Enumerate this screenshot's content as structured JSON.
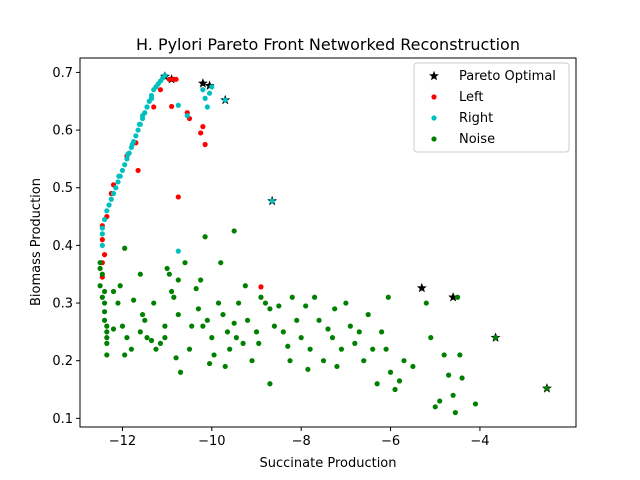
{
  "chart_data": {
    "type": "scatter",
    "title": "H. Pylori Pareto Front Networked Reconstruction",
    "xlabel": "Succinate Production",
    "ylabel": "Biomass Production",
    "xlim": [
      -12.95,
      -1.85
    ],
    "ylim": [
      0.085,
      0.725
    ],
    "xticks": [
      -12,
      -10,
      -8,
      -6,
      -4
    ],
    "xtick_labels": [
      "−12",
      "−10",
      "−8",
      "−6",
      "−4"
    ],
    "yticks": [
      0.1,
      0.2,
      0.3,
      0.4,
      0.5,
      0.6,
      0.7
    ],
    "ytick_labels": [
      "0.1",
      "0.2",
      "0.3",
      "0.4",
      "0.5",
      "0.6",
      "0.7"
    ],
    "grid": false,
    "legend_position": "top-right",
    "series": [
      {
        "name": "Pareto Optimal",
        "marker": "star",
        "color": "#000000",
        "points": [
          [
            -11.05,
            0.693
          ],
          [
            -10.9,
            0.688
          ],
          [
            -10.2,
            0.681
          ],
          [
            -10.05,
            0.677
          ],
          [
            -9.7,
            0.652
          ],
          [
            -8.65,
            0.477
          ],
          [
            -5.3,
            0.326
          ],
          [
            -4.6,
            0.31
          ],
          [
            -3.65,
            0.24
          ],
          [
            -2.5,
            0.152
          ]
        ]
      },
      {
        "name": "Left",
        "marker": "dot",
        "color": "#ff0000",
        "points": [
          [
            -10.95,
            0.688
          ],
          [
            -10.85,
            0.688
          ],
          [
            -10.8,
            0.688
          ],
          [
            -10.9,
            0.641
          ],
          [
            -10.55,
            0.63
          ],
          [
            -10.5,
            0.62
          ],
          [
            -10.2,
            0.606
          ],
          [
            -10.25,
            0.595
          ],
          [
            -10.15,
            0.575
          ],
          [
            -10.75,
            0.484
          ],
          [
            -11.65,
            0.53
          ],
          [
            -12.45,
            0.41
          ],
          [
            -12.45,
            0.434
          ],
          [
            -12.45,
            0.37
          ],
          [
            -12.45,
            0.345
          ],
          [
            -12.4,
            0.384
          ],
          [
            -8.9,
            0.328
          ],
          [
            -12.25,
            0.49
          ],
          [
            -12.2,
            0.505
          ],
          [
            -11.9,
            0.555
          ],
          [
            -11.7,
            0.578
          ],
          [
            -11.3,
            0.64
          ],
          [
            -11.15,
            0.67
          ],
          [
            -12.35,
            0.45
          ]
        ]
      },
      {
        "name": "Right",
        "marker": "dot",
        "color": "#00bfbf",
        "points": [
          [
            -12.45,
            0.42
          ],
          [
            -12.45,
            0.4
          ],
          [
            -12.45,
            0.43
          ],
          [
            -12.4,
            0.445
          ],
          [
            -12.35,
            0.46
          ],
          [
            -12.3,
            0.47
          ],
          [
            -12.25,
            0.48
          ],
          [
            -12.2,
            0.49
          ],
          [
            -12.15,
            0.5
          ],
          [
            -12.1,
            0.51
          ],
          [
            -12.05,
            0.52
          ],
          [
            -12.0,
            0.53
          ],
          [
            -11.95,
            0.54
          ],
          [
            -11.9,
            0.55
          ],
          [
            -11.85,
            0.56
          ],
          [
            -11.8,
            0.57
          ],
          [
            -11.75,
            0.58
          ],
          [
            -11.7,
            0.59
          ],
          [
            -11.65,
            0.6
          ],
          [
            -11.6,
            0.61
          ],
          [
            -11.55,
            0.62
          ],
          [
            -11.5,
            0.63
          ],
          [
            -11.45,
            0.64
          ],
          [
            -11.4,
            0.65
          ],
          [
            -11.35,
            0.66
          ],
          [
            -11.3,
            0.67
          ],
          [
            -11.25,
            0.675
          ],
          [
            -11.2,
            0.68
          ],
          [
            -11.15,
            0.685
          ],
          [
            -11.1,
            0.69
          ],
          [
            -11.05,
            0.695
          ],
          [
            -10.75,
            0.643
          ],
          [
            -10.55,
            0.625
          ],
          [
            -10.2,
            0.67
          ],
          [
            -10.15,
            0.655
          ],
          [
            -10.1,
            0.64
          ],
          [
            -10.05,
            0.664
          ],
          [
            -10.0,
            0.675
          ],
          [
            -9.7,
            0.652
          ],
          [
            -8.65,
            0.477
          ],
          [
            -10.75,
            0.39
          ],
          [
            -11.55,
            0.625
          ],
          [
            -11.45,
            0.64
          ],
          [
            -11.78,
            0.575
          ],
          [
            -11.88,
            0.558
          ],
          [
            -12.08,
            0.52
          ],
          [
            -11.62,
            0.61
          ],
          [
            -11.35,
            0.655
          ]
        ]
      },
      {
        "name": "Noise",
        "marker": "dot",
        "color": "#008000",
        "points": [
          [
            -12.5,
            0.37
          ],
          [
            -12.5,
            0.36
          ],
          [
            -12.5,
            0.33
          ],
          [
            -12.45,
            0.35
          ],
          [
            -12.45,
            0.31
          ],
          [
            -12.4,
            0.3
          ],
          [
            -12.4,
            0.285
          ],
          [
            -12.4,
            0.27
          ],
          [
            -12.35,
            0.26
          ],
          [
            -12.35,
            0.25
          ],
          [
            -12.35,
            0.24
          ],
          [
            -12.35,
            0.23
          ],
          [
            -12.35,
            0.21
          ],
          [
            -12.4,
            0.32
          ],
          [
            -12.2,
            0.32
          ],
          [
            -12.2,
            0.255
          ],
          [
            -12.1,
            0.3
          ],
          [
            -12.05,
            0.33
          ],
          [
            -12.0,
            0.26
          ],
          [
            -11.95,
            0.21
          ],
          [
            -11.9,
            0.24
          ],
          [
            -11.95,
            0.395
          ],
          [
            -11.75,
            0.305
          ],
          [
            -11.6,
            0.25
          ],
          [
            -11.55,
            0.28
          ],
          [
            -11.5,
            0.27
          ],
          [
            -11.45,
            0.24
          ],
          [
            -11.35,
            0.235
          ],
          [
            -11.3,
            0.3
          ],
          [
            -11.25,
            0.22
          ],
          [
            -11.15,
            0.23
          ],
          [
            -11.05,
            0.24
          ],
          [
            -11.05,
            0.26
          ],
          [
            -11.0,
            0.36
          ],
          [
            -10.95,
            0.35
          ],
          [
            -10.9,
            0.32
          ],
          [
            -10.85,
            0.31
          ],
          [
            -10.8,
            0.205
          ],
          [
            -10.75,
            0.34
          ],
          [
            -10.75,
            0.28
          ],
          [
            -10.6,
            0.37
          ],
          [
            -10.45,
            0.26
          ],
          [
            -10.35,
            0.325
          ],
          [
            -10.3,
            0.29
          ],
          [
            -10.25,
            0.34
          ],
          [
            -10.2,
            0.26
          ],
          [
            -10.15,
            0.415
          ],
          [
            -10.1,
            0.27
          ],
          [
            -10.05,
            0.195
          ],
          [
            -10.0,
            0.24
          ],
          [
            -9.95,
            0.21
          ],
          [
            -9.85,
            0.3
          ],
          [
            -9.8,
            0.37
          ],
          [
            -9.75,
            0.28
          ],
          [
            -9.65,
            0.25
          ],
          [
            -9.6,
            0.22
          ],
          [
            -9.5,
            0.265
          ],
          [
            -9.5,
            0.425
          ],
          [
            -9.45,
            0.24
          ],
          [
            -9.4,
            0.3
          ],
          [
            -9.3,
            0.23
          ],
          [
            -9.2,
            0.27
          ],
          [
            -9.1,
            0.2
          ],
          [
            -9.0,
            0.25
          ],
          [
            -8.95,
            0.23
          ],
          [
            -8.9,
            0.31
          ],
          [
            -8.8,
            0.3
          ],
          [
            -8.7,
            0.29
          ],
          [
            -8.6,
            0.26
          ],
          [
            -8.5,
            0.295
          ],
          [
            -8.4,
            0.25
          ],
          [
            -8.3,
            0.225
          ],
          [
            -8.25,
            0.2
          ],
          [
            -8.2,
            0.31
          ],
          [
            -8.1,
            0.27
          ],
          [
            -8.0,
            0.24
          ],
          [
            -7.9,
            0.295
          ],
          [
            -7.85,
            0.185
          ],
          [
            -7.8,
            0.22
          ],
          [
            -7.7,
            0.31
          ],
          [
            -7.6,
            0.27
          ],
          [
            -7.5,
            0.2
          ],
          [
            -7.4,
            0.255
          ],
          [
            -7.3,
            0.24
          ],
          [
            -7.2,
            0.19
          ],
          [
            -7.1,
            0.22
          ],
          [
            -7.0,
            0.3
          ],
          [
            -6.9,
            0.26
          ],
          [
            -6.8,
            0.23
          ],
          [
            -6.7,
            0.25
          ],
          [
            -6.6,
            0.2
          ],
          [
            -6.5,
            0.28
          ],
          [
            -6.4,
            0.22
          ],
          [
            -6.3,
            0.16
          ],
          [
            -6.2,
            0.25
          ],
          [
            -6.1,
            0.22
          ],
          [
            -6.0,
            0.18
          ],
          [
            -5.9,
            0.15
          ],
          [
            -5.8,
            0.165
          ],
          [
            -5.7,
            0.2
          ],
          [
            -5.2,
            0.3
          ],
          [
            -5.1,
            0.24
          ],
          [
            -5.0,
            0.12
          ],
          [
            -4.9,
            0.13
          ],
          [
            -4.8,
            0.21
          ],
          [
            -4.7,
            0.175
          ],
          [
            -4.6,
            0.14
          ],
          [
            -4.55,
            0.11
          ],
          [
            -4.5,
            0.31
          ],
          [
            -4.45,
            0.21
          ],
          [
            -4.4,
            0.17
          ],
          [
            -4.1,
            0.125
          ],
          [
            -3.65,
            0.24
          ],
          [
            -2.5,
            0.152
          ],
          [
            -11.6,
            0.35
          ],
          [
            -10.7,
            0.18
          ],
          [
            -9.25,
            0.33
          ],
          [
            -7.25,
            0.29
          ],
          [
            -6.05,
            0.31
          ],
          [
            -5.5,
            0.19
          ],
          [
            -8.7,
            0.16
          ],
          [
            -9.7,
            0.19
          ],
          [
            -10.5,
            0.22
          ],
          [
            -11.8,
            0.22
          ]
        ]
      }
    ]
  }
}
